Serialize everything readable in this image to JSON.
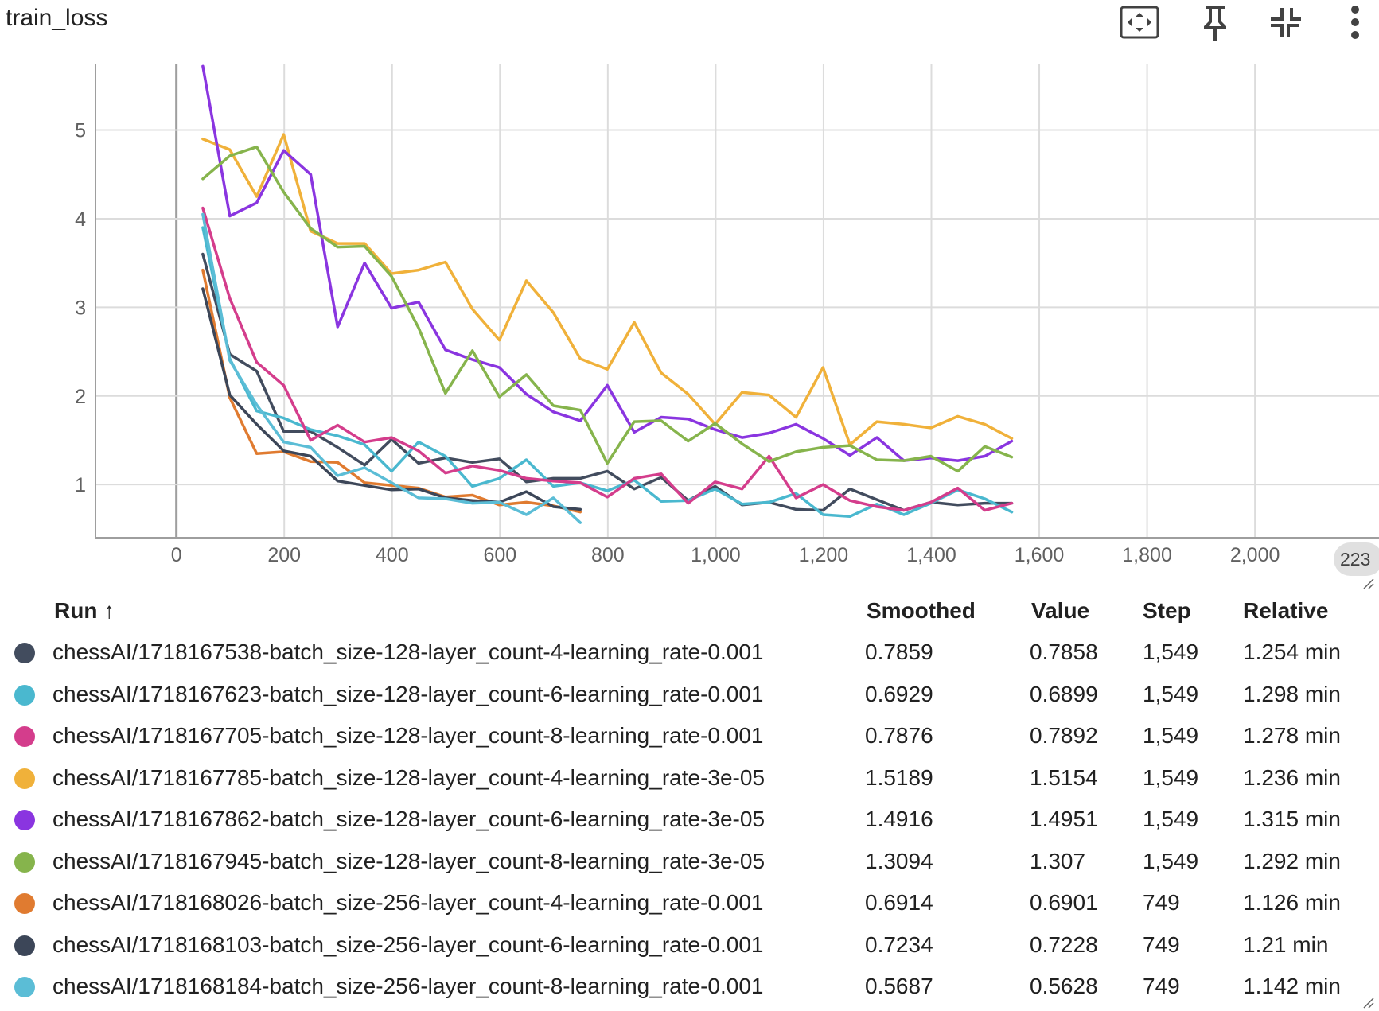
{
  "title": "train_loss",
  "toolbar": {
    "icons": [
      "fit-domain-icon",
      "pin-icon",
      "collapse-icon",
      "more-vert-icon"
    ]
  },
  "x_pill_label": "223",
  "chart_data": {
    "type": "line",
    "title": "train_loss",
    "xlabel": "",
    "ylabel": "",
    "xlim": [
      -150,
      2230
    ],
    "ylim": [
      0.4,
      5.75
    ],
    "x_ticks": [
      "0",
      "200",
      "400",
      "600",
      "800",
      "1,000",
      "1,200",
      "1,400",
      "1,600",
      "1,800",
      "2,000"
    ],
    "y_ticks": [
      "1",
      "2",
      "3",
      "4",
      "5"
    ],
    "grid": true,
    "series": [
      {
        "name": "chessAI/1718167538-batch_size-128-layer_count-4-learning_rate-0.001",
        "color": "#424c5e",
        "x": [
          49,
          99,
          149,
          199,
          249,
          299,
          349,
          399,
          449,
          499,
          549,
          599,
          649,
          699,
          749,
          799,
          849,
          899,
          949,
          999,
          1049,
          1099,
          1149,
          1199,
          1249,
          1299,
          1349,
          1399,
          1449,
          1499,
          1549
        ],
        "y": [
          3.6,
          2.47,
          2.28,
          1.6,
          1.6,
          1.42,
          1.22,
          1.51,
          1.24,
          1.3,
          1.25,
          1.29,
          1.03,
          1.07,
          1.07,
          1.15,
          0.95,
          1.08,
          0.82,
          0.98,
          0.77,
          0.8,
          0.72,
          0.71,
          0.95,
          0.83,
          0.71,
          0.8,
          0.77,
          0.79,
          0.79
        ]
      },
      {
        "name": "chessAI/1718167623-batch_size-128-layer_count-6-learning_rate-0.001",
        "color": "#4ab8cf",
        "x": [
          49,
          99,
          149,
          199,
          249,
          299,
          349,
          399,
          449,
          499,
          549,
          599,
          649,
          699,
          749,
          799,
          849,
          899,
          949,
          999,
          1049,
          1099,
          1149,
          1199,
          1249,
          1299,
          1349,
          1399,
          1449,
          1499,
          1549
        ],
        "y": [
          3.9,
          2.42,
          1.83,
          1.75,
          1.62,
          1.55,
          1.45,
          1.15,
          1.48,
          1.32,
          0.98,
          1.07,
          1.28,
          0.98,
          1.02,
          0.93,
          1.05,
          0.81,
          0.82,
          0.95,
          0.78,
          0.8,
          0.9,
          0.66,
          0.64,
          0.78,
          0.66,
          0.79,
          0.94,
          0.84,
          0.69
        ]
      },
      {
        "name": "chessAI/1718167705-batch_size-128-layer_count-8-learning_rate-0.001",
        "color": "#d43d8c",
        "x": [
          49,
          99,
          149,
          199,
          249,
          299,
          349,
          399,
          449,
          499,
          549,
          599,
          649,
          699,
          749,
          799,
          849,
          899,
          949,
          999,
          1049,
          1099,
          1149,
          1199,
          1249,
          1299,
          1349,
          1399,
          1449,
          1499,
          1549
        ],
        "y": [
          4.12,
          3.1,
          2.38,
          2.12,
          1.5,
          1.67,
          1.48,
          1.53,
          1.38,
          1.13,
          1.21,
          1.16,
          1.07,
          1.04,
          1.02,
          0.86,
          1.07,
          1.12,
          0.79,
          1.03,
          0.95,
          1.32,
          0.85,
          1.0,
          0.82,
          0.75,
          0.71,
          0.8,
          0.96,
          0.71,
          0.79
        ]
      },
      {
        "name": "chessAI/1718167785-batch_size-128-layer_count-4-learning_rate-3e-05",
        "color": "#f0b13a",
        "x": [
          49,
          99,
          149,
          199,
          249,
          299,
          349,
          399,
          449,
          499,
          549,
          599,
          649,
          699,
          749,
          799,
          849,
          899,
          949,
          999,
          1049,
          1099,
          1149,
          1199,
          1249,
          1299,
          1349,
          1399,
          1449,
          1499,
          1549
        ],
        "y": [
          4.9,
          4.78,
          4.25,
          4.95,
          3.86,
          3.72,
          3.72,
          3.38,
          3.42,
          3.51,
          2.98,
          2.63,
          3.3,
          2.94,
          2.42,
          2.3,
          2.83,
          2.26,
          2.02,
          1.68,
          2.04,
          2.01,
          1.76,
          2.32,
          1.45,
          1.71,
          1.68,
          1.64,
          1.77,
          1.68,
          1.52
        ]
      },
      {
        "name": "chessAI/1718167862-batch_size-128-layer_count-6-learning_rate-3e-05",
        "color": "#8a35e0",
        "x": [
          49,
          99,
          149,
          199,
          249,
          299,
          349,
          399,
          449,
          499,
          549,
          599,
          649,
          699,
          749,
          799,
          849,
          899,
          949,
          999,
          1049,
          1099,
          1149,
          1199,
          1249,
          1299,
          1349,
          1399,
          1449,
          1499,
          1549
        ],
        "y": [
          5.72,
          4.03,
          4.18,
          4.77,
          4.5,
          2.78,
          3.5,
          2.99,
          3.06,
          2.52,
          2.41,
          2.32,
          2.02,
          1.82,
          1.72,
          2.12,
          1.59,
          1.76,
          1.74,
          1.62,
          1.53,
          1.58,
          1.68,
          1.52,
          1.33,
          1.53,
          1.27,
          1.3,
          1.27,
          1.32,
          1.49
        ]
      },
      {
        "name": "chessAI/1718167945-batch_size-128-layer_count-8-learning_rate-3e-05",
        "color": "#86b44c",
        "x": [
          49,
          99,
          149,
          199,
          249,
          299,
          349,
          399,
          449,
          499,
          549,
          599,
          649,
          699,
          749,
          799,
          849,
          899,
          949,
          999,
          1049,
          1099,
          1149,
          1199,
          1249,
          1299,
          1349,
          1399,
          1449,
          1499,
          1549
        ],
        "y": [
          4.45,
          4.71,
          4.81,
          4.3,
          3.89,
          3.68,
          3.69,
          3.35,
          2.77,
          2.03,
          2.51,
          1.99,
          2.24,
          1.89,
          1.84,
          1.24,
          1.71,
          1.72,
          1.49,
          1.69,
          1.46,
          1.26,
          1.37,
          1.42,
          1.44,
          1.28,
          1.27,
          1.32,
          1.15,
          1.43,
          1.31
        ]
      },
      {
        "name": "chessAI/1718168026-batch_size-256-layer_count-4-learning_rate-0.001",
        "color": "#e07b30",
        "x": [
          49,
          99,
          149,
          199,
          249,
          299,
          349,
          399,
          449,
          499,
          549,
          599,
          649,
          699,
          749
        ],
        "y": [
          3.42,
          1.98,
          1.35,
          1.37,
          1.26,
          1.25,
          1.02,
          0.99,
          0.96,
          0.86,
          0.88,
          0.77,
          0.8,
          0.76,
          0.69
        ]
      },
      {
        "name": "chessAI/1718168103-batch_size-256-layer_count-6-learning_rate-0.001",
        "color": "#3c4658",
        "x": [
          49,
          99,
          149,
          199,
          249,
          299,
          349,
          399,
          449,
          499,
          549,
          599,
          649,
          699,
          749
        ],
        "y": [
          3.21,
          2.01,
          1.68,
          1.38,
          1.32,
          1.04,
          0.99,
          0.94,
          0.95,
          0.85,
          0.82,
          0.8,
          0.92,
          0.75,
          0.72
        ]
      },
      {
        "name": "chessAI/1718168184-batch_size-256-layer_count-8-learning_rate-0.001",
        "color": "#5bbdd6",
        "x": [
          49,
          99,
          149,
          199,
          249,
          299,
          349,
          399,
          449,
          499,
          549,
          599,
          649,
          699,
          749
        ],
        "y": [
          4.05,
          2.4,
          1.9,
          1.48,
          1.42,
          1.1,
          1.19,
          1.02,
          0.85,
          0.84,
          0.79,
          0.8,
          0.66,
          0.85,
          0.57
        ]
      }
    ]
  },
  "table": {
    "headers": {
      "run": "Run ↑",
      "smoothed": "Smoothed",
      "value": "Value",
      "step": "Step",
      "relative": "Relative"
    },
    "rows": [
      {
        "run": "chessAI/1718167538-batch_size-128-layer_count-4-learning_rate-0.001",
        "smoothed": "0.7859",
        "value": "0.7858",
        "step": "1,549",
        "relative": "1.254 min",
        "color": "#424c5e"
      },
      {
        "run": "chessAI/1718167623-batch_size-128-layer_count-6-learning_rate-0.001",
        "smoothed": "0.6929",
        "value": "0.6899",
        "step": "1,549",
        "relative": "1.298 min",
        "color": "#4ab8cf"
      },
      {
        "run": "chessAI/1718167705-batch_size-128-layer_count-8-learning_rate-0.001",
        "smoothed": "0.7876",
        "value": "0.7892",
        "step": "1,549",
        "relative": "1.278 min",
        "color": "#d43d8c"
      },
      {
        "run": "chessAI/1718167785-batch_size-128-layer_count-4-learning_rate-3e-05",
        "smoothed": "1.5189",
        "value": "1.5154",
        "step": "1,549",
        "relative": "1.236 min",
        "color": "#f0b13a"
      },
      {
        "run": "chessAI/1718167862-batch_size-128-layer_count-6-learning_rate-3e-05",
        "smoothed": "1.4916",
        "value": "1.4951",
        "step": "1,549",
        "relative": "1.315 min",
        "color": "#8a35e0"
      },
      {
        "run": "chessAI/1718167945-batch_size-128-layer_count-8-learning_rate-3e-05",
        "smoothed": "1.3094",
        "value": "1.307",
        "step": "1,549",
        "relative": "1.292 min",
        "color": "#86b44c"
      },
      {
        "run": "chessAI/1718168026-batch_size-256-layer_count-4-learning_rate-0.001",
        "smoothed": "0.6914",
        "value": "0.6901",
        "step": "749",
        "relative": "1.126 min",
        "color": "#e07b30"
      },
      {
        "run": "chessAI/1718168103-batch_size-256-layer_count-6-learning_rate-0.001",
        "smoothed": "0.7234",
        "value": "0.7228",
        "step": "749",
        "relative": "1.21 min",
        "color": "#3c4658"
      },
      {
        "run": "chessAI/1718168184-batch_size-256-layer_count-8-learning_rate-0.001",
        "smoothed": "0.5687",
        "value": "0.5628",
        "step": "749",
        "relative": "1.142 min",
        "color": "#5bbdd6"
      }
    ]
  }
}
